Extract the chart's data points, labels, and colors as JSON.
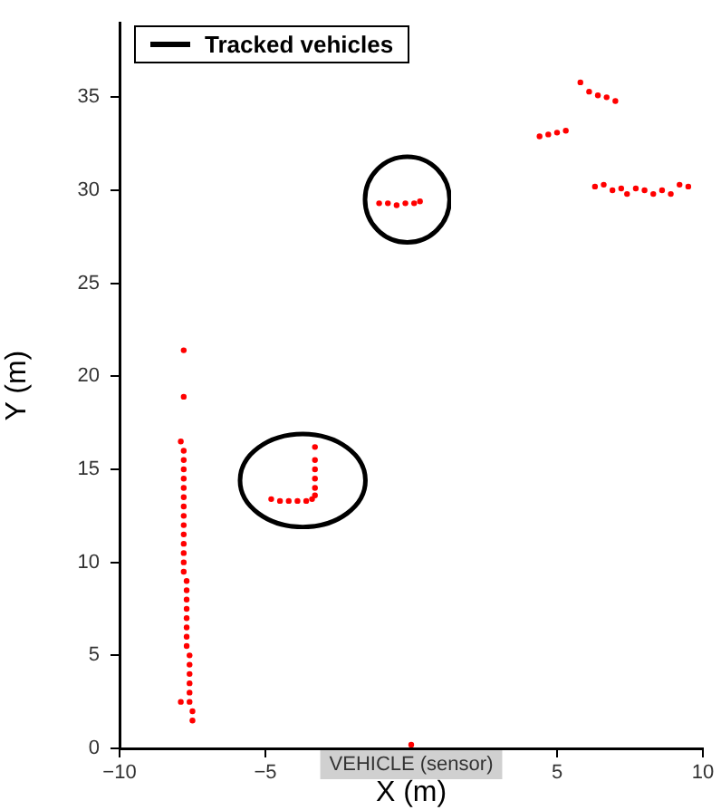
{
  "chart_data": {
    "type": "scatter",
    "xlabel": "X (m)",
    "ylabel": "Y (m)",
    "xlim": [
      -10,
      10
    ],
    "ylim": [
      0,
      39
    ],
    "xticks": [
      {
        "value": -10,
        "label": "−10"
      },
      {
        "value": -5,
        "label": "−5"
      },
      5,
      10
    ],
    "yticks": [
      0,
      5,
      10,
      15,
      20,
      25,
      30,
      35
    ],
    "grid": false,
    "marker": "circle",
    "annotations": [
      "Tracked vehicles",
      {
        "text": "VEHICLE (sensor)",
        "x": 0,
        "y": 0
      }
    ],
    "series": [
      {
        "color": "#ff0000",
        "x": [
          -7.5,
          -7.5,
          -7.6,
          -7.6,
          -7.6,
          -7.6,
          -7.6,
          -7.6,
          -7.7,
          -7.7,
          -7.7,
          -7.7,
          -7.7,
          -7.7,
          -7.7,
          -7.7,
          -7.8,
          -7.8,
          -7.8,
          -7.8,
          -7.8,
          -7.8,
          -7.8,
          -7.8,
          -7.8,
          -7.8,
          -7.8,
          -7.8,
          -7.8,
          -7.8,
          -7.9,
          -7.8,
          -7.8,
          -7.9,
          -4.8,
          -4.5,
          -4.2,
          -3.9,
          -3.6,
          -3.4,
          -3.3,
          -3.3,
          -3.3,
          -3.3,
          -3.3,
          -3.3,
          -1.1,
          -0.8,
          -0.5,
          -0.2,
          0.1,
          0.3,
          5.8,
          6.1,
          6.4,
          6.7,
          7.0,
          4.4,
          4.7,
          5.0,
          5.3,
          6.3,
          6.6,
          6.9,
          7.2,
          7.4,
          7.7,
          8.0,
          8.3,
          8.6,
          8.9,
          9.2,
          9.5,
          0
        ],
        "values": [
          1.5,
          2.0,
          2.5,
          3.0,
          3.5,
          4.0,
          4.5,
          5.0,
          5.5,
          6.0,
          6.5,
          7.0,
          7.5,
          8.0,
          8.5,
          9.0,
          9.5,
          10.0,
          10.5,
          11.0,
          11.5,
          12.0,
          12.5,
          13.0,
          13.5,
          14.0,
          14.5,
          15.0,
          15.5,
          16.0,
          16.5,
          18.9,
          21.4,
          2.5,
          13.4,
          13.3,
          13.3,
          13.3,
          13.3,
          13.4,
          13.6,
          14.0,
          14.5,
          15.0,
          15.5,
          16.2,
          29.3,
          29.3,
          29.2,
          29.3,
          29.3,
          29.4,
          35.8,
          35.3,
          35.1,
          35.0,
          34.8,
          32.9,
          33.0,
          33.1,
          33.2,
          30.2,
          30.3,
          30.0,
          30.1,
          29.8,
          30.1,
          30.0,
          29.8,
          30.0,
          29.8,
          30.3,
          30.2,
          0.2
        ]
      }
    ]
  }
}
